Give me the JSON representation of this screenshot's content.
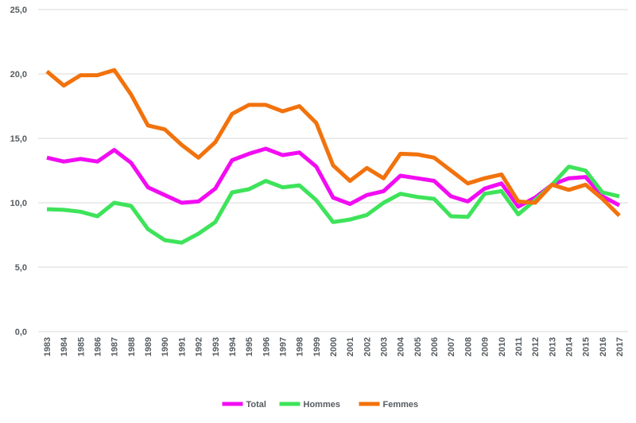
{
  "chart_data": {
    "type": "line",
    "title": "",
    "xlabel": "",
    "ylabel": "",
    "ylim": [
      0,
      25
    ],
    "yticks": [
      "0,0",
      "5,0",
      "10,0",
      "15,0",
      "20,0",
      "25,0"
    ],
    "ytick_values": [
      0,
      5,
      10,
      15,
      20,
      25
    ],
    "grid": true,
    "legend_position": "bottom-center",
    "x": [
      "1983",
      "1984",
      "1985",
      "1986",
      "1987",
      "1988",
      "1989",
      "1990",
      "1991",
      "1992",
      "1993",
      "1994",
      "1995",
      "1996",
      "1997",
      "1998",
      "1999",
      "2000",
      "2001",
      "2002",
      "2003",
      "2004",
      "2005",
      "2006",
      "2007",
      "2008",
      "2009",
      "2010",
      "2011",
      "2012",
      "2013",
      "2014",
      "2015",
      "2016",
      "2017"
    ],
    "series": [
      {
        "name": "Total",
        "color": "#f20cf2",
        "values": [
          13.5,
          13.2,
          13.4,
          13.2,
          14.1,
          13.1,
          11.2,
          10.6,
          10.0,
          10.1,
          11.1,
          13.3,
          13.8,
          14.2,
          13.7,
          13.9,
          12.8,
          10.4,
          9.9,
          10.6,
          10.9,
          12.1,
          11.9,
          11.7,
          10.5,
          10.1,
          11.1,
          11.5,
          9.7,
          10.4,
          11.4,
          11.9,
          12.0,
          10.5,
          9.8
        ]
      },
      {
        "name": "Hommes",
        "color": "#3ee35a",
        "values": [
          9.5,
          9.45,
          9.3,
          8.95,
          10.0,
          9.75,
          7.95,
          7.1,
          6.9,
          7.6,
          8.5,
          10.8,
          11.05,
          11.7,
          11.2,
          11.35,
          10.2,
          8.5,
          8.7,
          9.05,
          10.0,
          10.7,
          10.45,
          10.3,
          8.95,
          8.9,
          10.7,
          10.9,
          9.1,
          10.2,
          11.4,
          12.8,
          12.5,
          10.8,
          10.5
        ]
      },
      {
        "name": "Femmes",
        "color": "#f2720c",
        "values": [
          20.2,
          19.1,
          19.9,
          19.9,
          20.3,
          18.4,
          16.0,
          15.7,
          14.5,
          13.5,
          14.7,
          16.9,
          17.6,
          17.6,
          17.1,
          17.5,
          16.2,
          12.9,
          11.7,
          12.7,
          11.9,
          13.8,
          13.75,
          13.5,
          12.5,
          11.5,
          11.9,
          12.2,
          10.1,
          10.0,
          11.4,
          11.0,
          11.4,
          10.3,
          9.0
        ]
      }
    ]
  }
}
